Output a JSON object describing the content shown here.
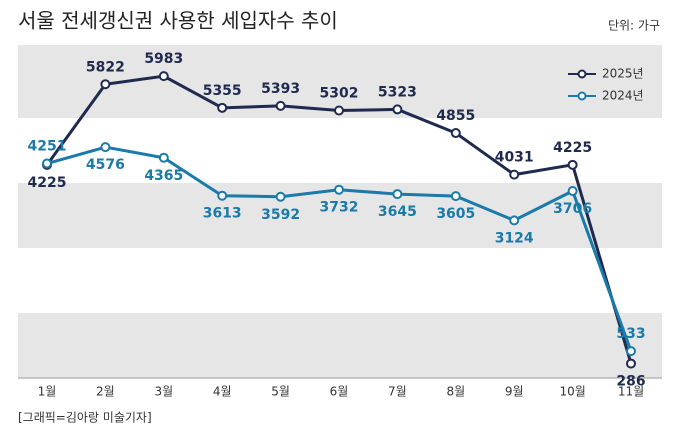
{
  "chart_data": {
    "type": "line",
    "title": "서울 전세갱신권 사용한 세입자수 추이",
    "unit": "단위: 가구",
    "source": "[그래픽=김아랑 미술기자]",
    "categories": [
      "1월",
      "2월",
      "3월",
      "4월",
      "5월",
      "6월",
      "7월",
      "8월",
      "9월",
      "10월",
      "11월"
    ],
    "ylim": [
      0,
      6600
    ],
    "legend": "top-right",
    "series": [
      {
        "name": "2025년",
        "color": "#1f2a4f",
        "values": [
          4225,
          5822,
          5983,
          5355,
          5393,
          5302,
          5323,
          4855,
          4031,
          4225,
          286
        ]
      },
      {
        "name": "2024년",
        "color": "#1a7aa8",
        "values": [
          4251,
          4576,
          4365,
          3613,
          3592,
          3732,
          3645,
          3605,
          3124,
          3706,
          533
        ]
      }
    ]
  }
}
